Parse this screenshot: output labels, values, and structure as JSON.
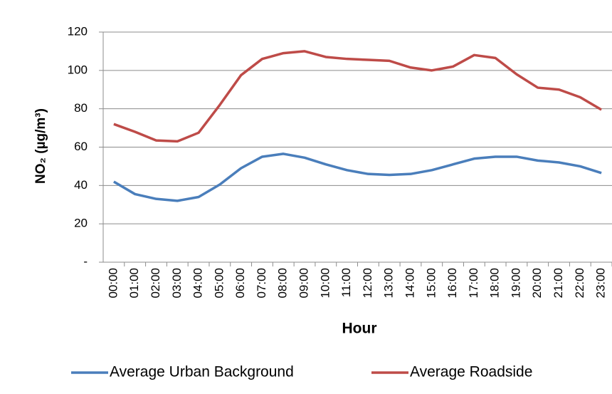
{
  "chart_data": {
    "type": "line",
    "y_label": "NO₂ (µg/m³)",
    "x_label": "Hour",
    "categories": [
      "00:00",
      "01:00",
      "02:00",
      "03:00",
      "04:00",
      "05:00",
      "06:00",
      "07:00",
      "08:00",
      "09:00",
      "10:00",
      "11:00",
      "12:00",
      "13:00",
      "14:00",
      "15:00",
      "16:00",
      "17:00",
      "18:00",
      "19:00",
      "20:00",
      "21:00",
      "22:00",
      "23:00"
    ],
    "series": [
      {
        "name": "Average Urban Background",
        "color": "#4a7ebb",
        "values": [
          42,
          35.5,
          33,
          32,
          34,
          40.5,
          49,
          55,
          56.5,
          54.5,
          51,
          48,
          46,
          45.5,
          46,
          48,
          51,
          54,
          55,
          55,
          53,
          52,
          50,
          46.5
        ]
      },
      {
        "name": "Average Roadside",
        "color": "#be4b48",
        "values": [
          72,
          68,
          63.5,
          63,
          67.5,
          82,
          97.5,
          106,
          109,
          110,
          107,
          106,
          105.5,
          105,
          101.5,
          100,
          102,
          108,
          106.5,
          98,
          91,
          90,
          86,
          79.5
        ]
      }
    ],
    "ylim": [
      0,
      120
    ],
    "yticks": [
      {
        "value": 0,
        "label": "-"
      },
      20,
      40,
      60,
      80,
      100,
      120
    ],
    "grid": true,
    "legend": "bottom"
  }
}
